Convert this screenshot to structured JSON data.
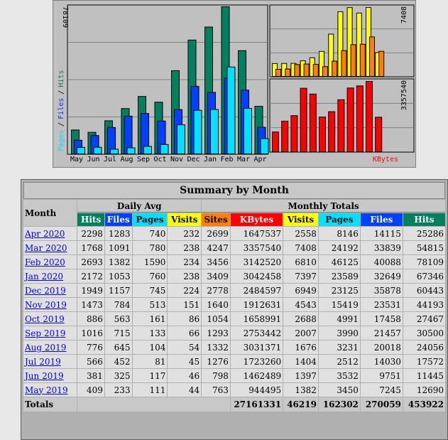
{
  "chart_data": [
    {
      "type": "bar",
      "categories": [
        "May",
        "Jun",
        "Jul",
        "Aug",
        "Sep",
        "Oct",
        "Nov",
        "Dec",
        "Jan",
        "Feb",
        "Mar",
        "Apr"
      ],
      "series": [
        {
          "name": "Hits",
          "values": [
            12690,
            11445,
            17572,
            24056,
            30500,
            27467,
            44193,
            60443,
            67346,
            78109,
            54815,
            25286
          ],
          "color": "#00805c"
        },
        {
          "name": "Files",
          "values": [
            7245,
            9751,
            14030,
            20018,
            21457,
            17458,
            23531,
            35878,
            32649,
            40088,
            33839,
            14115
          ],
          "color": "#0040ff"
        },
        {
          "name": "Pages",
          "values": [
            3450,
            3532,
            2512,
            3231,
            3990,
            4991,
            15419,
            23125,
            23589,
            46125,
            24192,
            8146
          ],
          "color": "#00e0ff"
        }
      ],
      "ymax_label": "78109",
      "ylabel_parts": [
        "Pages",
        "/",
        "Files",
        "/",
        "Hits"
      ]
    },
    {
      "type": "bar",
      "categories": [
        "May",
        "Jun",
        "Jul",
        "Aug",
        "Sep",
        "Oct",
        "Nov",
        "Dec",
        "Jan",
        "Feb",
        "Mar",
        "Apr"
      ],
      "series": [
        {
          "name": "Visits",
          "values": [
            1382,
            1397,
            1404,
            1676,
            2007,
            2688,
            4543,
            6949,
            7397,
            6810,
            7408,
            2558
          ],
          "color": "#ffff00"
        },
        {
          "name": "Sites",
          "values": [
            763,
            798,
            1276,
            1332,
            1293,
            1054,
            1640,
            2778,
            3409,
            3456,
            4247,
            2699
          ],
          "color": "#ff8000"
        }
      ],
      "ymax_label": "7408"
    },
    {
      "type": "bar",
      "categories": [
        "May",
        "Jun",
        "Jul",
        "Aug",
        "Sep",
        "Oct",
        "Nov",
        "Dec",
        "Jan",
        "Feb",
        "Mar",
        "Apr"
      ],
      "series": [
        {
          "name": "KBytes",
          "values": [
            944495,
            1462489,
            1723260,
            3031371,
            2753442,
            1658991,
            1912631,
            2484597,
            3042458,
            3142520,
            3357540,
            1647537
          ],
          "color": "#ff0000"
        }
      ],
      "ymax_label": "3357540",
      "legend": "KBytes"
    }
  ],
  "summary": {
    "title": "Summary by Month",
    "month_header": "Month",
    "daily_avg_header": "Daily Avg",
    "monthly_totals_header": "Monthly Totals",
    "daily_cols": [
      "Hits",
      "Files",
      "Pages",
      "Visits"
    ],
    "monthly_cols": [
      "Sites",
      "KBytes",
      "Visits",
      "Pages",
      "Files",
      "Hits"
    ],
    "rows": [
      {
        "month": "Apr 2020",
        "d": [
          "2298",
          "1283",
          "740",
          "232"
        ],
        "m": [
          "2699",
          "1647537",
          "2558",
          "8146",
          "14115",
          "25286"
        ]
      },
      {
        "month": "Mar 2020",
        "d": [
          "1768",
          "1091",
          "780",
          "238"
        ],
        "m": [
          "4247",
          "3357540",
          "7408",
          "24192",
          "33839",
          "54815"
        ]
      },
      {
        "month": "Feb 2020",
        "d": [
          "2693",
          "1382",
          "1590",
          "234"
        ],
        "m": [
          "3456",
          "3142520",
          "6810",
          "46125",
          "40088",
          "78109"
        ]
      },
      {
        "month": "Jan 2020",
        "d": [
          "2172",
          "1053",
          "760",
          "238"
        ],
        "m": [
          "3409",
          "3042458",
          "7397",
          "23589",
          "32649",
          "67346"
        ]
      },
      {
        "month": "Dec 2019",
        "d": [
          "1949",
          "1157",
          "745",
          "224"
        ],
        "m": [
          "2778",
          "2484597",
          "6949",
          "23125",
          "35878",
          "60443"
        ]
      },
      {
        "month": "Nov 2019",
        "d": [
          "1473",
          "784",
          "513",
          "151"
        ],
        "m": [
          "1640",
          "1912631",
          "4543",
          "15419",
          "23531",
          "44193"
        ]
      },
      {
        "month": "Oct 2019",
        "d": [
          "886",
          "563",
          "161",
          "86"
        ],
        "m": [
          "1054",
          "1658991",
          "2688",
          "4991",
          "17458",
          "27467"
        ]
      },
      {
        "month": "Sep 2019",
        "d": [
          "1016",
          "715",
          "133",
          "66"
        ],
        "m": [
          "1293",
          "2753442",
          "2007",
          "3990",
          "21457",
          "30500"
        ]
      },
      {
        "month": "Aug 2019",
        "d": [
          "776",
          "645",
          "104",
          "54"
        ],
        "m": [
          "1332",
          "3031371",
          "1676",
          "3231",
          "20018",
          "24056"
        ]
      },
      {
        "month": "Jul 2019",
        "d": [
          "566",
          "452",
          "81",
          "45"
        ],
        "m": [
          "1276",
          "1723260",
          "1404",
          "2512",
          "14030",
          "17572"
        ]
      },
      {
        "month": "Jun 2019",
        "d": [
          "381",
          "325",
          "117",
          "46"
        ],
        "m": [
          "798",
          "1462489",
          "1397",
          "3532",
          "9751",
          "11445"
        ]
      },
      {
        "month": "May 2019",
        "d": [
          "409",
          "233",
          "111",
          "44"
        ],
        "m": [
          "763",
          "944495",
          "1382",
          "3450",
          "7245",
          "12690"
        ]
      }
    ],
    "totals_label": "Totals",
    "totals": [
      "27161331",
      "46219",
      "162302",
      "270059",
      "453922"
    ]
  }
}
